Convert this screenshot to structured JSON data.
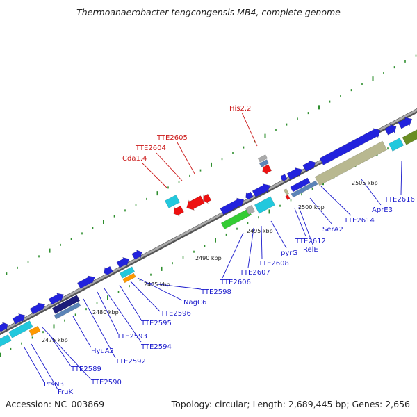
{
  "title": "Thermoanaerobacter tengcongensis MB4, complete genome",
  "footer": {
    "accession": "Accession: NC_003869",
    "summary": "Topology: circular; Length: 2,689,445 bp; Genes: 2,656"
  },
  "colors": {
    "backbone": "#8a8a8a",
    "tick": "#2f8f2f",
    "forward_label": "#1a1acc",
    "reverse_label": "#cc1a1a",
    "gene_blue": "#2222dd",
    "gene_red": "#ee1111",
    "gene_cyan": "#22c8dd",
    "gene_green": "#33cc33",
    "gene_olive": "#b8b890",
    "gene_orange": "#ff9900",
    "gene_navy": "#1c1c7a",
    "gene_steel": "#5b84b8",
    "gene_grey": "#aaaaaa"
  },
  "scale_labels": [
    "2475 kbp",
    "2480 kbp",
    "2485 kbp",
    "2490 kbp",
    "2495 kbp",
    "2500 kbp",
    "2505 kbp"
  ],
  "reverse_labels": [
    "His2.2",
    "TTE2605",
    "TTE2604",
    "Cda1.4"
  ],
  "forward_labels": [
    "TTE2616",
    "AprE3",
    "TTE2614",
    "SerA2",
    "TTE2612",
    "RelE",
    "pyrG",
    "TTE2608",
    "TTE2607",
    "TTE2606",
    "TTE2598",
    "NagC6",
    "TTE2596",
    "TTE2595",
    "TTE2594",
    "TTE2593",
    "TTE2592",
    "HyuA2",
    "TTE2589",
    "TTE2590",
    "FruK",
    "PtsN3"
  ]
}
